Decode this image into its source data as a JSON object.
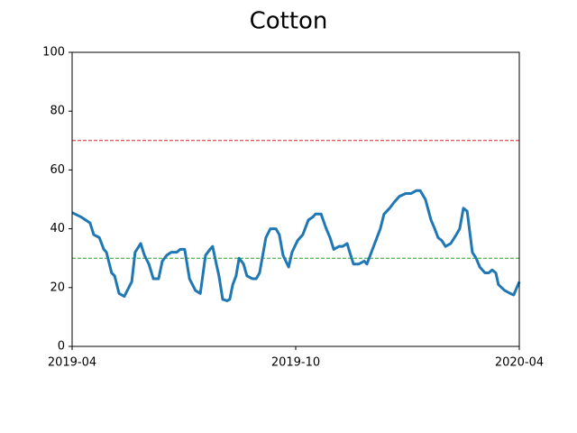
{
  "chart_data": {
    "type": "line",
    "title": "Cotton",
    "x": [
      0,
      0.24,
      0.48,
      0.58,
      0.73,
      0.85,
      0.92,
      1.06,
      1.14,
      1.26,
      1.4,
      1.6,
      1.69,
      1.84,
      1.94,
      2.06,
      2.18,
      2.32,
      2.42,
      2.54,
      2.66,
      2.81,
      2.9,
      3.02,
      3.15,
      3.31,
      3.44,
      3.58,
      3.7,
      3.77,
      3.87,
      3.94,
      4.04,
      4.16,
      4.23,
      4.31,
      4.4,
      4.48,
      4.6,
      4.69,
      4.84,
      4.94,
      5.03,
      5.2,
      5.32,
      5.47,
      5.56,
      5.66,
      5.81,
      5.9,
      6.05,
      6.19,
      6.34,
      6.46,
      6.53,
      6.68,
      6.82,
      6.92,
      7.02,
      7.16,
      7.26,
      7.38,
      7.45,
      7.55,
      7.69,
      7.84,
      7.91,
      8.03,
      8.18,
      8.27,
      8.37,
      8.52,
      8.64,
      8.78,
      8.95,
      9.1,
      9.24,
      9.34,
      9.48,
      9.63,
      9.73,
      9.82,
      9.92,
      10.02,
      10.16,
      10.31,
      10.4,
      10.5,
      10.6,
      10.74,
      10.84,
      10.94,
      11.08,
      11.18,
      11.27,
      11.37,
      11.44,
      11.61,
      11.76,
      11.85,
      12
    ],
    "series": [
      {
        "color": "#1f77b4",
        "values": [
          45.5,
          44,
          42,
          38,
          37,
          33,
          32,
          25,
          24,
          18,
          17,
          22,
          32,
          35,
          31,
          28,
          23,
          23,
          29,
          31,
          32,
          32,
          33,
          33,
          23,
          19,
          18,
          31,
          33,
          34,
          28,
          24,
          16,
          15.5,
          16,
          21,
          24,
          30,
          28,
          24,
          23,
          23,
          25,
          37,
          40,
          40,
          38,
          31,
          27,
          32,
          36,
          38,
          43,
          44,
          45,
          45,
          40,
          37,
          33,
          34,
          34,
          35,
          32,
          28,
          28,
          29,
          28,
          32,
          37,
          40,
          45,
          47,
          49,
          51,
          52,
          52,
          53,
          53,
          50,
          43,
          40,
          37,
          36,
          34,
          35,
          38,
          40,
          47,
          46,
          32,
          30,
          27,
          25,
          25,
          26,
          25,
          21,
          19,
          18,
          17.5,
          22
        ]
      }
    ],
    "hlines": [
      {
        "value": 70,
        "color": "#d62728"
      },
      {
        "value": 30,
        "color": "#2ca02c"
      }
    ],
    "xlim": [
      0,
      12
    ],
    "xticks": [
      {
        "value": 0,
        "label": "2019-04"
      },
      {
        "value": 6,
        "label": "2019-10"
      },
      {
        "value": 12,
        "label": "2020-04"
      }
    ],
    "ylim": [
      0,
      100
    ],
    "yticks": [
      0,
      20,
      40,
      60,
      80,
      100
    ]
  }
}
